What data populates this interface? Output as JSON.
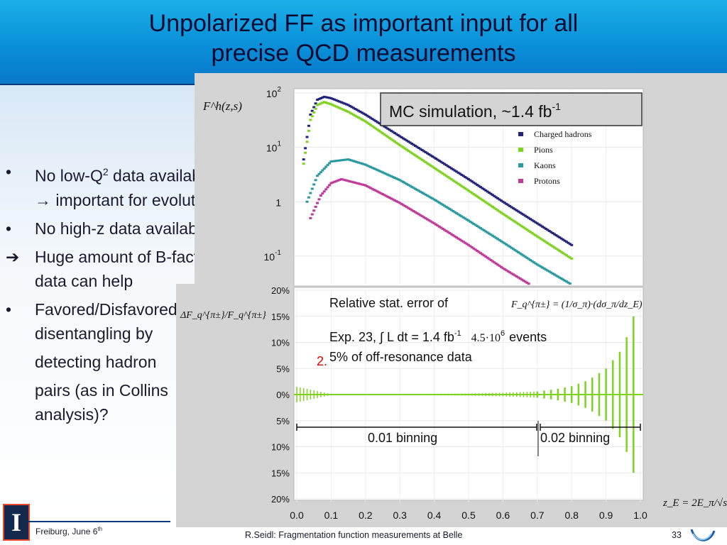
{
  "slide": {
    "title_line1": "Unpolarized FF as important input for all",
    "title_line2": "precise QCD measurements",
    "bullets": [
      {
        "marker": "•",
        "lines": [
          "No low-Q",
          "2",
          " data available"
        ]
      },
      {
        "marker": "",
        "text": "→ important for evolution"
      },
      {
        "marker": "•",
        "text": "No high-z data available"
      },
      {
        "marker": "➔",
        "text": "Huge amount of B-factory"
      },
      {
        "marker": "",
        "text": "data can help"
      },
      {
        "marker": "•",
        "text": "Favored/Disfavored"
      },
      {
        "marker": "",
        "text": "disentangling by"
      },
      {
        "marker": "",
        "text": "detecting hadron"
      },
      {
        "marker": "",
        "text": "pairs (as in Collins"
      },
      {
        "marker": "",
        "text": "analysis)?"
      }
    ],
    "footer": {
      "left": "Freiburg, June 6",
      "left_sup": "th",
      "center": "R.Seidl: Fragmentation function measurements at Belle",
      "page": "33",
      "logo_letter": "I"
    }
  },
  "chart_data": [
    {
      "type": "scatter",
      "panel": "upper",
      "ylabel": "F^h(z,s)",
      "yscale": "log",
      "ylim": [
        0.03,
        100
      ],
      "yticks": [
        "10^2",
        "10^1",
        "1",
        "10^-1"
      ],
      "xlim": [
        0.0,
        1.0
      ],
      "annotation": "MC simulation, ~1.4 fb",
      "annotation_sup": "-1",
      "series": [
        {
          "name": "Charged hadrons",
          "color": "#23237a",
          "x": [
            0.02,
            0.04,
            0.06,
            0.08,
            0.1,
            0.15,
            0.2,
            0.3,
            0.4,
            0.5,
            0.6,
            0.7,
            0.8
          ],
          "y": [
            6,
            40,
            75,
            85,
            80,
            60,
            40,
            16,
            6.5,
            2.6,
            1.0,
            0.4,
            0.16
          ]
        },
        {
          "name": "Pions",
          "color": "#7ed321",
          "x": [
            0.02,
            0.04,
            0.06,
            0.08,
            0.1,
            0.15,
            0.2,
            0.3,
            0.4,
            0.5,
            0.6,
            0.7,
            0.8
          ],
          "y": [
            5,
            32,
            60,
            68,
            62,
            45,
            30,
            11,
            4.2,
            1.6,
            0.6,
            0.23,
            0.09
          ]
        },
        {
          "name": "Kaons",
          "color": "#2a9aa0",
          "x": [
            0.03,
            0.06,
            0.1,
            0.15,
            0.2,
            0.3,
            0.4,
            0.5,
            0.6,
            0.7,
            0.8
          ],
          "y": [
            1.0,
            3.0,
            5.5,
            6.0,
            4.8,
            2.5,
            1.1,
            0.45,
            0.18,
            0.07,
            0.03
          ]
        },
        {
          "name": "Protons",
          "color": "#c03a9a",
          "x": [
            0.04,
            0.07,
            0.1,
            0.13,
            0.2,
            0.3,
            0.4,
            0.5,
            0.6,
            0.7
          ],
          "y": [
            0.5,
            1.3,
            2.2,
            2.6,
            2.0,
            0.95,
            0.4,
            0.16,
            0.06,
            0.025
          ]
        }
      ]
    },
    {
      "type": "bar",
      "panel": "lower",
      "ylabel": "ΔF_q^{π±}/F_q^{π±}",
      "xlabel": "z_E = 2E_π/√s",
      "xlim": [
        0.0,
        1.0
      ],
      "xticks": [
        "0.0",
        "0.1",
        "0.2",
        "0.3",
        "0.4",
        "0.5",
        "0.6",
        "0.7",
        "0.8",
        "0.9",
        "1.0"
      ],
      "yticks": [
        "20%",
        "15%",
        "10%",
        "5%",
        "0%",
        "5%",
        "10%",
        "15%",
        "20%"
      ],
      "texts": {
        "line1": "Relative stat. error of",
        "formula1": "F_q^{π±} = (1/σ_π)·(dσ_π/dz_E)",
        "line2": "Exp. 23, ∫ L dt = 1.4 fb",
        "line2_sup": "-1",
        "line2_events": "4.5·10",
        "line2_events_sup": "6",
        "line2_end": "events",
        "line3_prefix": "2.",
        "line3": "5% of off-resonance data",
        "bin1": "0.01 binning",
        "bin2": "0.02 binning"
      },
      "error_bars": {
        "color": "#7ed321",
        "z": [
          0.0,
          0.1,
          0.2,
          0.3,
          0.4,
          0.5,
          0.6,
          0.7,
          0.75,
          0.8,
          0.85,
          0.9,
          0.95,
          0.98
        ],
        "err": [
          1.5,
          0.1,
          0.1,
          0.12,
          0.15,
          0.2,
          0.35,
          0.6,
          1.0,
          1.6,
          2.8,
          5.0,
          9.0,
          15.0
        ]
      }
    }
  ]
}
